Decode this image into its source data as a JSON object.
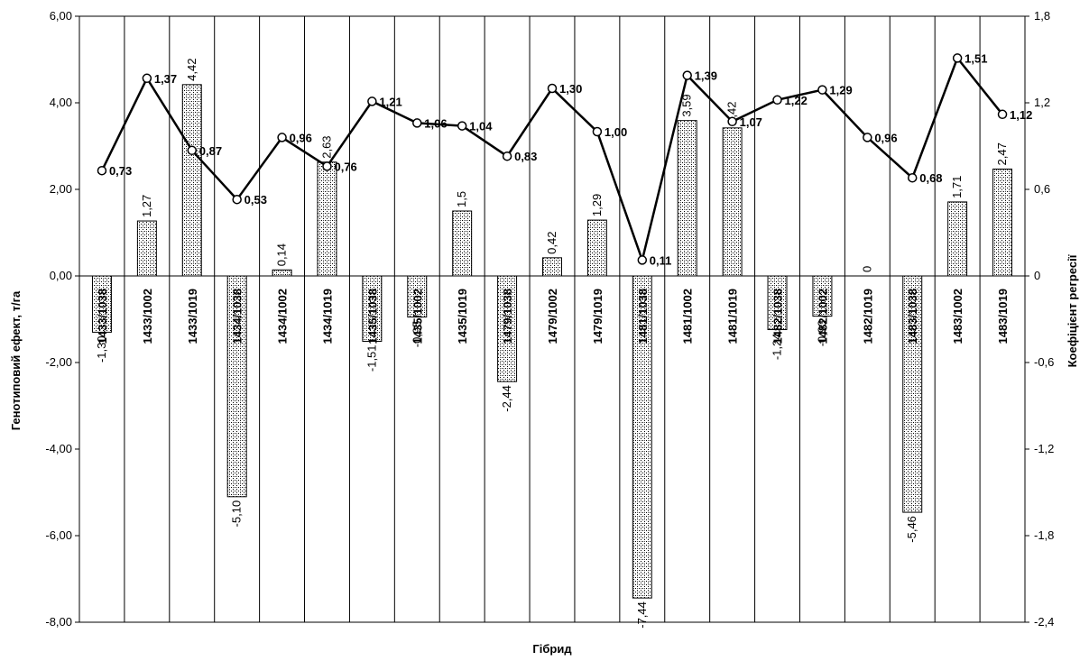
{
  "chart_data": {
    "type": "bar",
    "xlabel": "Гібрид",
    "ylabel": "Генотиповий ефект, т/га",
    "y2label": "Коефіцієнт регресії",
    "ylim": [
      -8,
      6
    ],
    "y2lim": [
      -2.4,
      1.8
    ],
    "yticks": [
      "-8,00",
      "-6,00",
      "-4,00",
      "-2,00",
      "0,00",
      "2,00",
      "4,00",
      "6,00"
    ],
    "y2ticks": [
      "-2,4",
      "-1,8",
      "-1,2",
      "-0,6",
      "0",
      "0,6",
      "1,2",
      "1,8"
    ],
    "grid": "vertical",
    "categories": [
      "1433/1038",
      "1433/1002",
      "1433/1019",
      "1434/1038",
      "1434/1002",
      "1434/1019",
      "1435/1038",
      "1435/1002",
      "1435/1019",
      "1479/1038",
      "1479/1002",
      "1479/1019",
      "1481/1038",
      "1481/1002",
      "1481/1019",
      "1482/1038",
      "1482/1002",
      "1482/1019",
      "1483/1038",
      "1483/1002",
      "1483/1019"
    ],
    "series": [
      {
        "values": [
          -1.3,
          1.27,
          4.42,
          -5.1,
          0.14,
          2.63,
          -1.51,
          -0.95,
          1.5,
          -2.44,
          0.42,
          1.29,
          -7.44,
          3.59,
          3.42,
          -1.24,
          -0.93,
          0,
          -5.46,
          1.71,
          2.47
        ],
        "labels": [
          "-1,30",
          "1,27",
          "4,42",
          "-5,10",
          "0,14",
          "2,63",
          "-1,51",
          "-0,95",
          "1,5",
          "-2,44",
          "0,42",
          "1,29",
          "-7,44",
          "3,59",
          "3,42",
          "-1,24",
          "-0,93",
          "0",
          "-5,46",
          "1,71",
          "2,47"
        ],
        "axis": "left",
        "mark": "bar"
      },
      {
        "values": [
          0.73,
          1.37,
          0.87,
          0.53,
          0.96,
          0.76,
          1.21,
          1.06,
          1.04,
          0.83,
          1.3,
          1.0,
          0.11,
          1.39,
          1.07,
          1.22,
          1.29,
          0.96,
          0.68,
          1.51,
          1.12
        ],
        "labels": [
          "0,73",
          "1,37",
          "0,87",
          "0,53",
          "0,96",
          "0,76",
          "1,21",
          "1,06",
          "1,04",
          "0,83",
          "1,30",
          "1,00",
          "0,11",
          "1,39",
          "1,07",
          "1,22",
          "1,29",
          "0,96",
          "0,68",
          "1,51",
          "1,12"
        ],
        "axis": "right",
        "mark": "line"
      }
    ]
  }
}
